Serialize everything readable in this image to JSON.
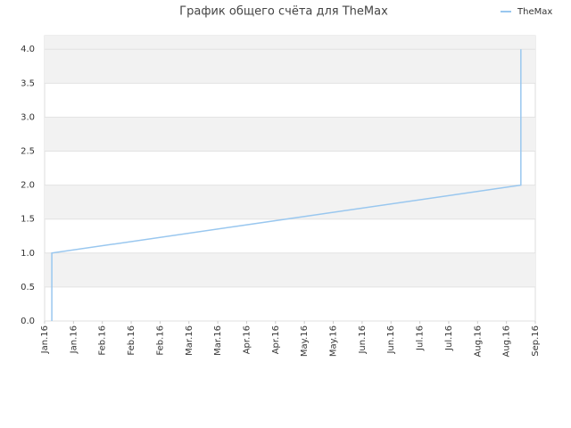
{
  "chart_data": {
    "type": "line",
    "title": "График общего счёта для TheMax",
    "x": [
      0.25,
      0.25,
      16.5,
      16.5
    ],
    "series": [
      {
        "name": "TheMax",
        "color": "#99c7ef",
        "values": [
          0,
          1,
          2,
          4
        ]
      }
    ],
    "xlim": [
      0,
      17
    ],
    "xticks": [
      {
        "value": 0,
        "label": "Jan.16"
      },
      {
        "value": 1,
        "label": "Jan.16"
      },
      {
        "value": 2,
        "label": "Feb.16"
      },
      {
        "value": 3,
        "label": "Feb.16"
      },
      {
        "value": 4,
        "label": "Feb.16"
      },
      {
        "value": 5,
        "label": "Mar.16"
      },
      {
        "value": 6,
        "label": "Mar.16"
      },
      {
        "value": 7,
        "label": "Apr.16"
      },
      {
        "value": 8,
        "label": "Apr.16"
      },
      {
        "value": 9,
        "label": "May.16"
      },
      {
        "value": 10,
        "label": "May.16"
      },
      {
        "value": 11,
        "label": "Jun.16"
      },
      {
        "value": 12,
        "label": "Jun.16"
      },
      {
        "value": 13,
        "label": "Jul.16"
      },
      {
        "value": 14,
        "label": "Jul.16"
      },
      {
        "value": 15,
        "label": "Aug.16"
      },
      {
        "value": 16,
        "label": "Aug.16"
      },
      {
        "value": 17,
        "label": "Sep.16"
      }
    ],
    "ylim": [
      0,
      4.2
    ],
    "yticks": [
      {
        "value": 0,
        "label": "0.0"
      },
      0.5,
      {
        "value": 1,
        "label": "1.0"
      },
      1.5,
      {
        "value": 2,
        "label": "2.0"
      },
      2.5,
      {
        "value": 3,
        "label": "3.0"
      },
      3.5,
      {
        "value": 4,
        "label": "4.0"
      }
    ],
    "grid": true,
    "legend": "top-right"
  }
}
